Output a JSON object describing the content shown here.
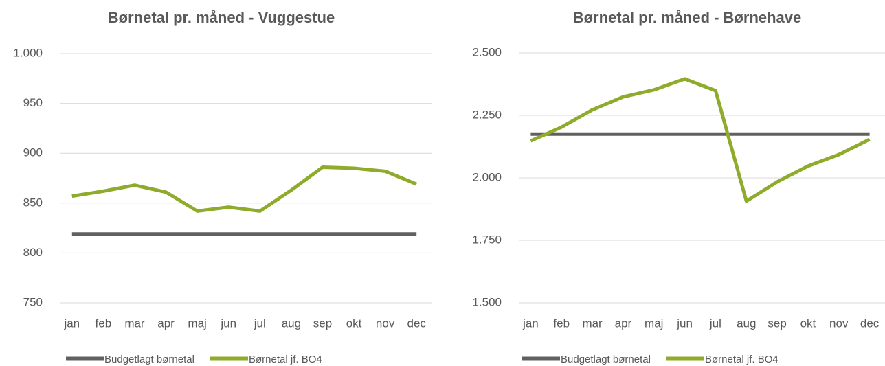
{
  "chart_data": [
    {
      "type": "line",
      "title": "Børnetal pr. måned - Vuggestue",
      "categories": [
        "jan",
        "feb",
        "mar",
        "apr",
        "maj",
        "jun",
        "jul",
        "aug",
        "sep",
        "okt",
        "nov",
        "dec"
      ],
      "series": [
        {
          "name": "Budgetlagt børnetal",
          "color": "#606060",
          "values": [
            819,
            819,
            819,
            819,
            819,
            819,
            819,
            819,
            819,
            819,
            819,
            819
          ]
        },
        {
          "name": "Børnetal jf. BO4",
          "color": "#8eab2c",
          "values": [
            857,
            862,
            868,
            861,
            842,
            846,
            842,
            863,
            886,
            885,
            882,
            869
          ]
        }
      ],
      "ylim": [
        750,
        1000
      ],
      "yticks": [
        750,
        800,
        850,
        900,
        950,
        {
          "value": 1000,
          "label": "1.000"
        }
      ],
      "grid": true,
      "legend": "bottom"
    },
    {
      "type": "line",
      "title": "Børnetal pr. måned - Børnehave",
      "categories": [
        "jan",
        "feb",
        "mar",
        "apr",
        "maj",
        "jun",
        "jul",
        "aug",
        "sep",
        "okt",
        "nov",
        "dec"
      ],
      "series": [
        {
          "name": "Budgetlagt børnetal",
          "color": "#606060",
          "values": [
            2175,
            2175,
            2175,
            2175,
            2175,
            2175,
            2175,
            2175,
            2175,
            2175,
            2175,
            2175
          ]
        },
        {
          "name": "Børnetal jf. BO4",
          "color": "#8eab2c",
          "values": [
            2148,
            2203,
            2272,
            2324,
            2352,
            2396,
            2349,
            1907,
            1984,
            2047,
            2093,
            2154
          ]
        }
      ],
      "ylim": [
        1500,
        2500
      ],
      "yticks": [
        {
          "value": 1500,
          "label": "1.500"
        },
        {
          "value": 1750,
          "label": "1.750"
        },
        {
          "value": 2000,
          "label": "2.000"
        },
        {
          "value": 2250,
          "label": "2.250"
        },
        {
          "value": 2500,
          "label": "2.500"
        }
      ],
      "grid": true,
      "legend": "bottom"
    }
  ]
}
